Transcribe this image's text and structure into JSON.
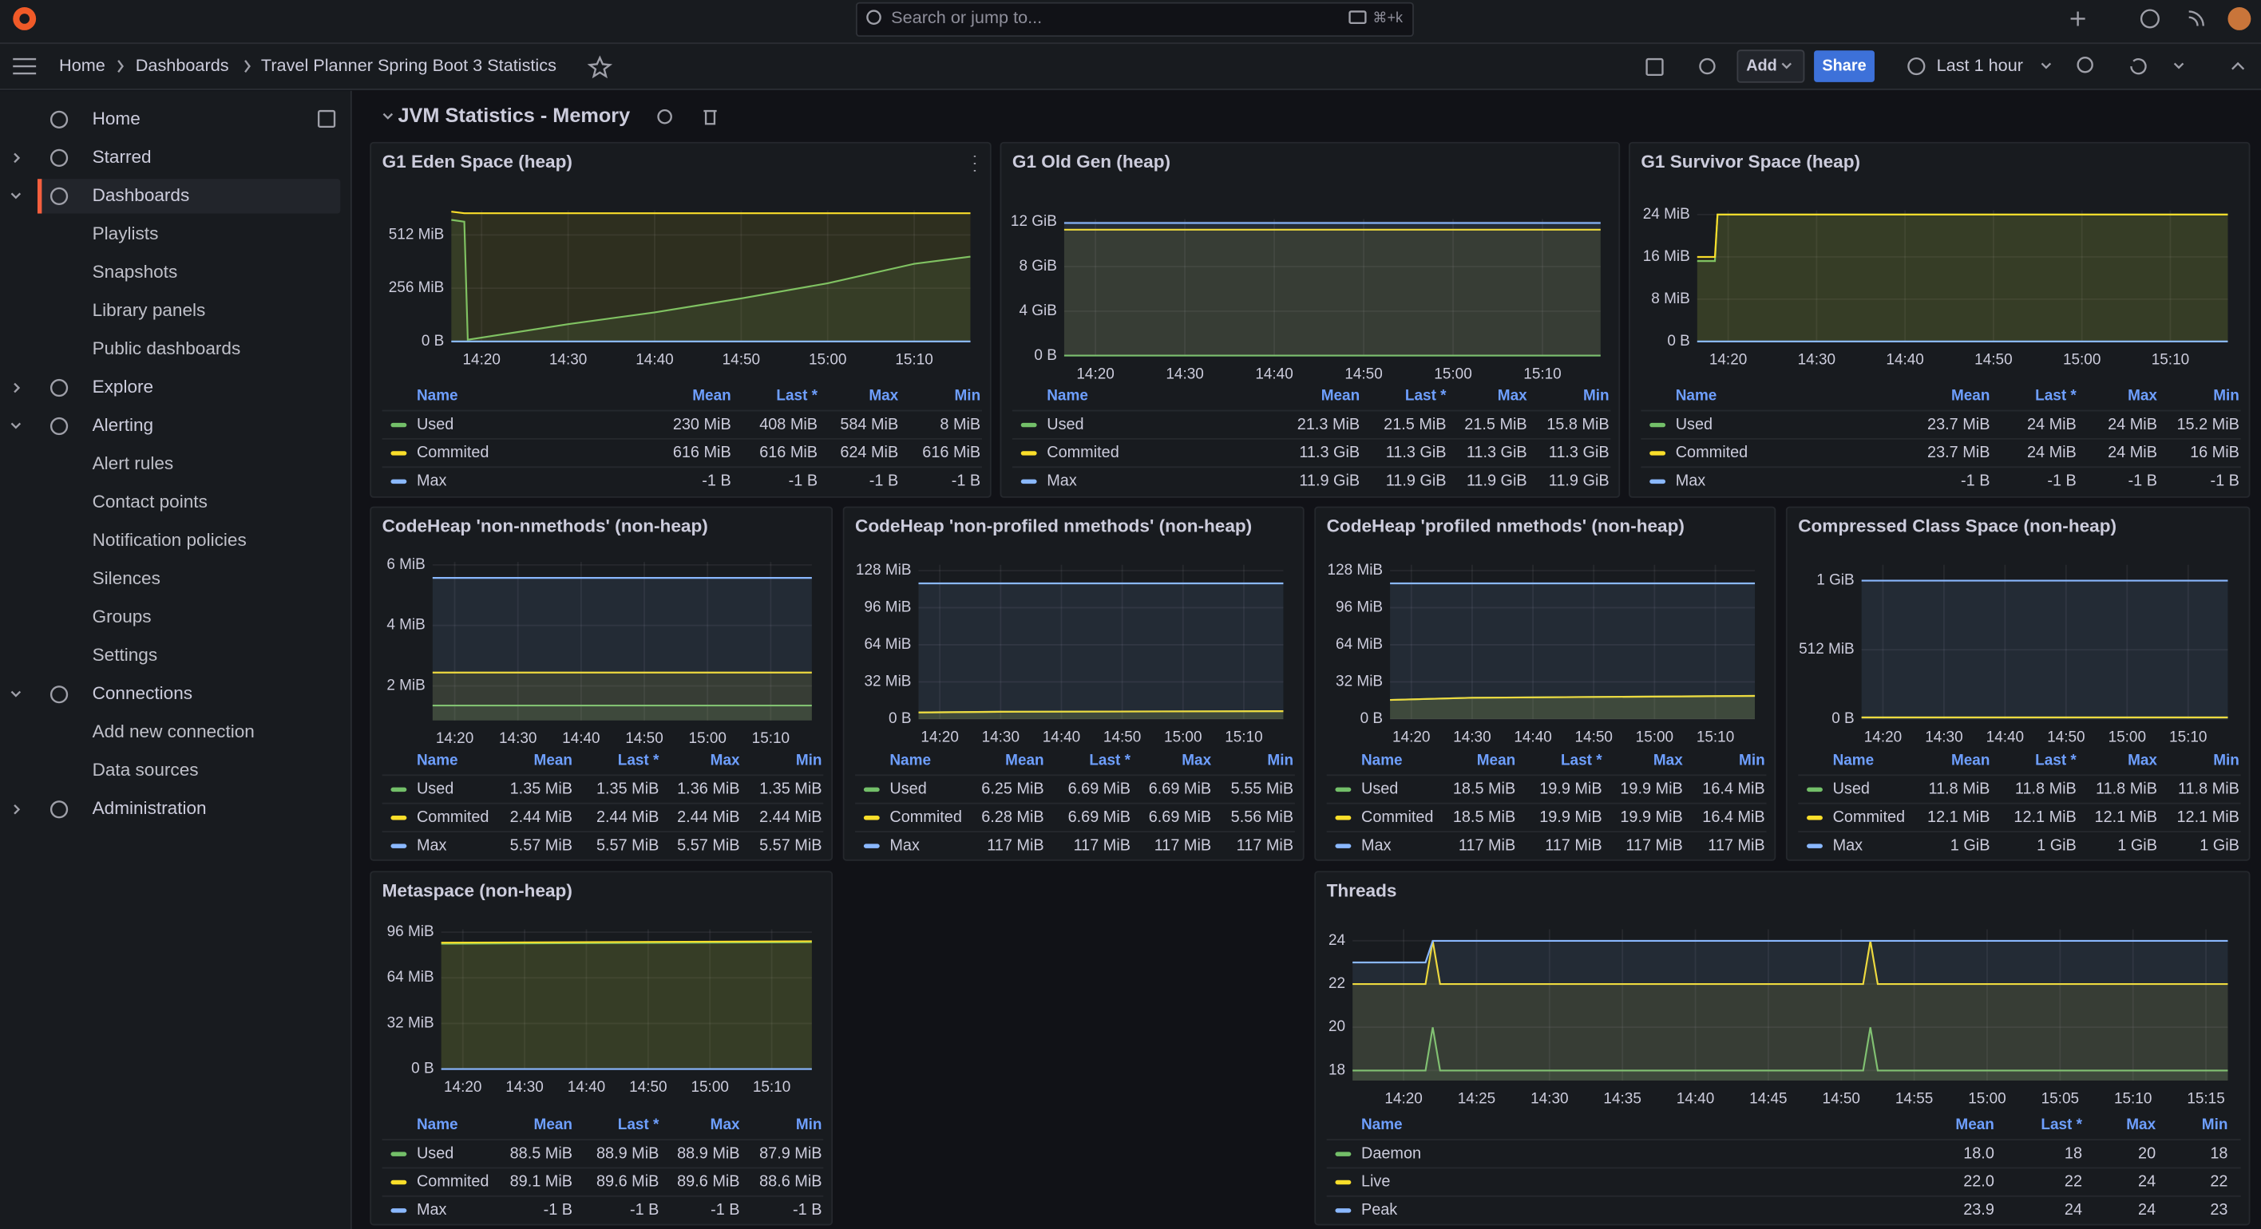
{
  "topbar": {
    "search": "Search or jump to...",
    "shortcut": "⌘+k"
  },
  "breadcrumbs": [
    "Home",
    "Dashboards",
    "Travel Planner Spring Boot 3 Statistics"
  ],
  "toolbar": {
    "add": "Add",
    "share": "Share",
    "time_range": "Last 1 hour"
  },
  "nav": [
    {
      "label": "Home",
      "level": 0,
      "expanded": null
    },
    {
      "label": "Starred",
      "level": 0,
      "expanded": false
    },
    {
      "label": "Dashboards",
      "level": 0,
      "expanded": true,
      "active": true
    },
    {
      "label": "Playlists",
      "level": 1
    },
    {
      "label": "Snapshots",
      "level": 1
    },
    {
      "label": "Library panels",
      "level": 1
    },
    {
      "label": "Public dashboards",
      "level": 1
    },
    {
      "label": "Explore",
      "level": 0,
      "expanded": false
    },
    {
      "label": "Alerting",
      "level": 0,
      "expanded": true
    },
    {
      "label": "Alert rules",
      "level": 1
    },
    {
      "label": "Contact points",
      "level": 1
    },
    {
      "label": "Notification policies",
      "level": 1
    },
    {
      "label": "Silences",
      "level": 1
    },
    {
      "label": "Groups",
      "level": 1
    },
    {
      "label": "Settings",
      "level": 1
    },
    {
      "label": "Connections",
      "level": 0,
      "expanded": true
    },
    {
      "label": "Add new connection",
      "level": 1
    },
    {
      "label": "Data sources",
      "level": 1
    },
    {
      "label": "Administration",
      "level": 0,
      "expanded": false
    }
  ],
  "row_title": "JVM Statistics - Memory",
  "legend_columns": [
    "Name",
    "Mean",
    "Last *",
    "Max",
    "Min"
  ],
  "panels": [
    {
      "title": "G1 Eden Space (heap)",
      "xlim": [
        856.5,
        916.5
      ],
      "xticks": [
        {
          "value": 860,
          "label": "14:20"
        },
        {
          "value": 870,
          "label": "14:30"
        },
        {
          "value": 880,
          "label": "14:40"
        },
        {
          "value": 890,
          "label": "14:50"
        },
        {
          "value": 900,
          "label": "15:00"
        },
        {
          "value": 910,
          "label": "15:10"
        }
      ],
      "ylim": [
        0,
        630
      ],
      "yticks": [
        {
          "value": 0,
          "label": "0 B"
        },
        {
          "value": 256,
          "label": "256 MiB"
        },
        {
          "value": 512,
          "label": "512 MiB"
        }
      ],
      "x": [
        856.5,
        858,
        858.4,
        870,
        880,
        890,
        900,
        910,
        916.5
      ],
      "series": [
        {
          "name": "Used",
          "color": "#73bf69",
          "values": [
            584,
            575,
            8,
            83,
            140,
            207,
            280,
            373,
            408
          ],
          "stats": [
            "230 MiB",
            "408 MiB",
            "584 MiB",
            "8 MiB"
          ]
        },
        {
          "name": "Commited",
          "color": "#fade2a",
          "values": [
            624,
            616,
            616,
            616,
            616,
            616,
            616,
            616,
            616
          ],
          "stats": [
            "616 MiB",
            "616 MiB",
            "624 MiB",
            "616 MiB"
          ]
        },
        {
          "name": "Max",
          "color": "#8ab8ff",
          "values": [
            0,
            0,
            0,
            0,
            0,
            0,
            0,
            0,
            0
          ],
          "stats": [
            "-1 B",
            "-1 B",
            "-1 B",
            "-1 B"
          ]
        }
      ]
    },
    {
      "title": "G1 Old Gen (heap)",
      "xlim": [
        856.5,
        916.5
      ],
      "xticks": [
        {
          "value": 860,
          "label": "14:20"
        },
        {
          "value": 870,
          "label": "14:30"
        },
        {
          "value": 880,
          "label": "14:40"
        },
        {
          "value": 890,
          "label": "14:50"
        },
        {
          "value": 900,
          "label": "15:00"
        },
        {
          "value": 910,
          "label": "15:10"
        }
      ],
      "ylim": [
        0,
        12.26
      ],
      "yticks": [
        {
          "value": 0,
          "label": "0 B"
        },
        {
          "value": 4,
          "label": "4 GiB"
        },
        {
          "value": 8,
          "label": "8 GiB"
        },
        {
          "value": 12,
          "label": "12 GiB"
        }
      ],
      "x": [
        856.5,
        916.5
      ],
      "series": [
        {
          "name": "Used",
          "color": "#73bf69",
          "values": [
            0.02,
            0.02
          ],
          "stats": [
            "21.3 MiB",
            "21.5 MiB",
            "21.5 MiB",
            "15.8 MiB"
          ]
        },
        {
          "name": "Commited",
          "color": "#fade2a",
          "values": [
            11.3,
            11.3
          ],
          "stats": [
            "11.3 GiB",
            "11.3 GiB",
            "11.3 GiB",
            "11.3 GiB"
          ]
        },
        {
          "name": "Max",
          "color": "#8ab8ff",
          "values": [
            11.9,
            11.9
          ],
          "stats": [
            "11.9 GiB",
            "11.9 GiB",
            "11.9 GiB",
            "11.9 GiB"
          ]
        }
      ]
    },
    {
      "title": "G1 Survivor Space (heap)",
      "xlim": [
        856.5,
        916.5
      ],
      "xticks": [
        {
          "value": 860,
          "label": "14:20"
        },
        {
          "value": 870,
          "label": "14:30"
        },
        {
          "value": 880,
          "label": "14:40"
        },
        {
          "value": 890,
          "label": "14:50"
        },
        {
          "value": 900,
          "label": "15:00"
        },
        {
          "value": 910,
          "label": "15:10"
        }
      ],
      "ylim": [
        0,
        24.8
      ],
      "yticks": [
        {
          "value": 0,
          "label": "0 B"
        },
        {
          "value": 8,
          "label": "8 MiB"
        },
        {
          "value": 16,
          "label": "16 MiB"
        },
        {
          "value": 24,
          "label": "24 MiB"
        }
      ],
      "x": [
        856.5,
        858.5,
        858.8,
        916.5
      ],
      "series": [
        {
          "name": "Used",
          "color": "#73bf69",
          "values": [
            15.2,
            15.2,
            24,
            24
          ],
          "stats": [
            "23.7 MiB",
            "24 MiB",
            "24 MiB",
            "15.2 MiB"
          ]
        },
        {
          "name": "Commited",
          "color": "#fade2a",
          "values": [
            16,
            16,
            24,
            24
          ],
          "stats": [
            "23.7 MiB",
            "24 MiB",
            "24 MiB",
            "16 MiB"
          ]
        },
        {
          "name": "Max",
          "color": "#8ab8ff",
          "values": [
            0,
            0,
            0,
            0
          ],
          "stats": [
            "-1 B",
            "-1 B",
            "-1 B",
            "-1 B"
          ]
        }
      ]
    },
    {
      "title": "CodeHeap 'non-nmethods' (non-heap)",
      "xlim": [
        856.5,
        916.5
      ],
      "xticks": [
        {
          "value": 860,
          "label": "14:20"
        },
        {
          "value": 870,
          "label": "14:30"
        },
        {
          "value": 880,
          "label": "14:40"
        },
        {
          "value": 890,
          "label": "14:50"
        },
        {
          "value": 900,
          "label": "15:00"
        },
        {
          "value": 910,
          "label": "15:10"
        }
      ],
      "ylim": [
        0.86,
        6.1
      ],
      "yticks": [
        {
          "value": 2,
          "label": "2 MiB"
        },
        {
          "value": 4,
          "label": "4 MiB"
        },
        {
          "value": 6,
          "label": "6 MiB"
        }
      ],
      "x": [
        856.5,
        916.5
      ],
      "series": [
        {
          "name": "Used",
          "color": "#73bf69",
          "values": [
            1.35,
            1.35
          ],
          "stats": [
            "1.35 MiB",
            "1.35 MiB",
            "1.36 MiB",
            "1.35 MiB"
          ]
        },
        {
          "name": "Commited",
          "color": "#fade2a",
          "values": [
            2.44,
            2.44
          ],
          "stats": [
            "2.44 MiB",
            "2.44 MiB",
            "2.44 MiB",
            "2.44 MiB"
          ]
        },
        {
          "name": "Max",
          "color": "#8ab8ff",
          "values": [
            5.57,
            5.57
          ],
          "stats": [
            "5.57 MiB",
            "5.57 MiB",
            "5.57 MiB",
            "5.57 MiB"
          ]
        }
      ]
    },
    {
      "title": "CodeHeap 'non-profiled nmethods' (non-heap)",
      "xlim": [
        856.5,
        916.5
      ],
      "xticks": [
        {
          "value": 860,
          "label": "14:20"
        },
        {
          "value": 870,
          "label": "14:30"
        },
        {
          "value": 880,
          "label": "14:40"
        },
        {
          "value": 890,
          "label": "14:50"
        },
        {
          "value": 900,
          "label": "15:00"
        },
        {
          "value": 910,
          "label": "15:10"
        }
      ],
      "ylim": [
        0,
        133
      ],
      "yticks": [
        {
          "value": 0,
          "label": "0 B"
        },
        {
          "value": 32,
          "label": "32 MiB"
        },
        {
          "value": 64,
          "label": "64 MiB"
        },
        {
          "value": 96,
          "label": "96 MiB"
        },
        {
          "value": 128,
          "label": "128 MiB"
        }
      ],
      "x": [
        856.5,
        870,
        916.5
      ],
      "series": [
        {
          "name": "Used",
          "color": "#73bf69",
          "values": [
            5.55,
            6.2,
            6.69
          ],
          "stats": [
            "6.25 MiB",
            "6.69 MiB",
            "6.69 MiB",
            "5.55 MiB"
          ]
        },
        {
          "name": "Commited",
          "color": "#fade2a",
          "values": [
            5.56,
            6.2,
            6.69
          ],
          "stats": [
            "6.28 MiB",
            "6.69 MiB",
            "6.69 MiB",
            "5.56 MiB"
          ]
        },
        {
          "name": "Max",
          "color": "#8ab8ff",
          "values": [
            117,
            117,
            117
          ],
          "stats": [
            "117 MiB",
            "117 MiB",
            "117 MiB",
            "117 MiB"
          ]
        }
      ]
    },
    {
      "title": "CodeHeap 'profiled nmethods' (non-heap)",
      "xlim": [
        856.5,
        916.5
      ],
      "xticks": [
        {
          "value": 860,
          "label": "14:20"
        },
        {
          "value": 870,
          "label": "14:30"
        },
        {
          "value": 880,
          "label": "14:40"
        },
        {
          "value": 890,
          "label": "14:50"
        },
        {
          "value": 900,
          "label": "15:00"
        },
        {
          "value": 910,
          "label": "15:10"
        }
      ],
      "ylim": [
        0,
        133
      ],
      "yticks": [
        {
          "value": 0,
          "label": "0 B"
        },
        {
          "value": 32,
          "label": "32 MiB"
        },
        {
          "value": 64,
          "label": "64 MiB"
        },
        {
          "value": 96,
          "label": "96 MiB"
        },
        {
          "value": 128,
          "label": "128 MiB"
        }
      ],
      "x": [
        856.5,
        870,
        916.5
      ],
      "series": [
        {
          "name": "Used",
          "color": "#73bf69",
          "values": [
            16.4,
            18.3,
            19.9
          ],
          "stats": [
            "18.5 MiB",
            "19.9 MiB",
            "19.9 MiB",
            "16.4 MiB"
          ]
        },
        {
          "name": "Commited",
          "color": "#fade2a",
          "values": [
            16.4,
            18.3,
            19.9
          ],
          "stats": [
            "18.5 MiB",
            "19.9 MiB",
            "19.9 MiB",
            "16.4 MiB"
          ]
        },
        {
          "name": "Max",
          "color": "#8ab8ff",
          "values": [
            117,
            117,
            117
          ],
          "stats": [
            "117 MiB",
            "117 MiB",
            "117 MiB",
            "117 MiB"
          ]
        }
      ]
    },
    {
      "title": "Compressed Class Space (non-heap)",
      "xlim": [
        856.5,
        916.5
      ],
      "xticks": [
        {
          "value": 860,
          "label": "14:20"
        },
        {
          "value": 870,
          "label": "14:30"
        },
        {
          "value": 880,
          "label": "14:40"
        },
        {
          "value": 890,
          "label": "14:50"
        },
        {
          "value": 900,
          "label": "15:00"
        },
        {
          "value": 910,
          "label": "15:10"
        }
      ],
      "ylim": [
        0,
        1141
      ],
      "yticks": [
        {
          "value": 0,
          "label": "0 B"
        },
        {
          "value": 512,
          "label": "512 MiB"
        },
        {
          "value": 1024,
          "label": "1 GiB"
        }
      ],
      "x": [
        856.5,
        916.5
      ],
      "series": [
        {
          "name": "Used",
          "color": "#73bf69",
          "values": [
            11.8,
            11.8
          ],
          "stats": [
            "11.8 MiB",
            "11.8 MiB",
            "11.8 MiB",
            "11.8 MiB"
          ]
        },
        {
          "name": "Commited",
          "color": "#fade2a",
          "values": [
            12.1,
            12.1
          ],
          "stats": [
            "12.1 MiB",
            "12.1 MiB",
            "12.1 MiB",
            "12.1 MiB"
          ]
        },
        {
          "name": "Max",
          "color": "#8ab8ff",
          "values": [
            1024,
            1024
          ],
          "stats": [
            "1 GiB",
            "1 GiB",
            "1 GiB",
            "1 GiB"
          ]
        }
      ]
    },
    {
      "title": "Metaspace (non-heap)",
      "xlim": [
        856.5,
        916.5
      ],
      "xticks": [
        {
          "value": 860,
          "label": "14:20"
        },
        {
          "value": 870,
          "label": "14:30"
        },
        {
          "value": 880,
          "label": "14:40"
        },
        {
          "value": 890,
          "label": "14:50"
        },
        {
          "value": 900,
          "label": "15:00"
        },
        {
          "value": 910,
          "label": "15:10"
        }
      ],
      "ylim": [
        0,
        98
      ],
      "yticks": [
        {
          "value": 0,
          "label": "0 B"
        },
        {
          "value": 32,
          "label": "32 MiB"
        },
        {
          "value": 64,
          "label": "64 MiB"
        },
        {
          "value": 96,
          "label": "96 MiB"
        }
      ],
      "x": [
        856.5,
        916.5
      ],
      "series": [
        {
          "name": "Used",
          "color": "#73bf69",
          "values": [
            87.9,
            88.9
          ],
          "stats": [
            "88.5 MiB",
            "88.9 MiB",
            "88.9 MiB",
            "87.9 MiB"
          ]
        },
        {
          "name": "Commited",
          "color": "#fade2a",
          "values": [
            88.6,
            89.6
          ],
          "stats": [
            "89.1 MiB",
            "89.6 MiB",
            "89.6 MiB",
            "88.6 MiB"
          ]
        },
        {
          "name": "Max",
          "color": "#8ab8ff",
          "values": [
            0,
            0
          ],
          "stats": [
            "-1 B",
            "-1 B",
            "-1 B",
            "-1 B"
          ]
        }
      ]
    },
    {
      "title": "Threads",
      "xlim": [
        856.5,
        916.5
      ],
      "xticks": [
        {
          "value": 860,
          "label": "14:20"
        },
        {
          "value": 865,
          "label": "14:25"
        },
        {
          "value": 870,
          "label": "14:30"
        },
        {
          "value": 875,
          "label": "14:35"
        },
        {
          "value": 880,
          "label": "14:40"
        },
        {
          "value": 885,
          "label": "14:45"
        },
        {
          "value": 890,
          "label": "14:50"
        },
        {
          "value": 895,
          "label": "14:55"
        },
        {
          "value": 900,
          "label": "15:00"
        },
        {
          "value": 905,
          "label": "15:05"
        },
        {
          "value": 910,
          "label": "15:10"
        },
        {
          "value": 915,
          "label": "15:15"
        }
      ],
      "ylim": [
        17.53,
        24.53
      ],
      "yticks": [
        18,
        20,
        22,
        24
      ],
      "x": [
        856.5,
        861.5,
        862,
        862.5,
        891.5,
        892,
        892.5,
        916.5
      ],
      "series": [
        {
          "name": "Daemon",
          "color": "#73bf69",
          "values": [
            18,
            18,
            20,
            18,
            18,
            20,
            18,
            18
          ],
          "stats": [
            "18.0",
            "18",
            "20",
            "18"
          ]
        },
        {
          "name": "Live",
          "color": "#fade2a",
          "values": [
            22,
            22,
            24,
            22,
            22,
            24,
            22,
            22
          ],
          "stats": [
            "22.0",
            "22",
            "24",
            "22"
          ]
        },
        {
          "name": "Peak",
          "color": "#8ab8ff",
          "values": [
            23,
            23,
            24,
            24,
            24,
            24,
            24,
            24
          ],
          "stats": [
            "23.9",
            "24",
            "24",
            "23"
          ]
        }
      ]
    }
  ]
}
